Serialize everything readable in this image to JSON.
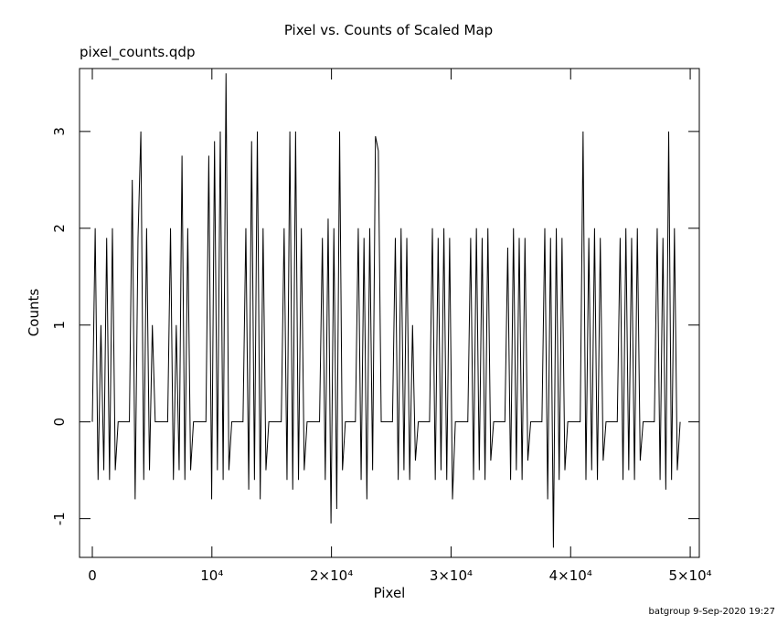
{
  "chart_data": {
    "type": "line",
    "title": "Pixel vs. Counts of Scaled Map",
    "subtitle": "pixel_counts.qdp",
    "x_label": "Pixel",
    "y_label": "Counts",
    "footer": "batgroup  9-Sep-2020 19:27",
    "xlim": [
      -1070,
      50760
    ],
    "ylim": [
      -1.4,
      3.65
    ],
    "xticks": [
      0,
      {
        "value": 10000,
        "label": "10⁴"
      },
      {
        "value": 20000,
        "label": "2×10⁴"
      },
      {
        "value": 30000,
        "label": "3×10⁴"
      },
      {
        "value": 40000,
        "label": "4×10⁴"
      },
      {
        "value": 50000,
        "label": "5×10⁴"
      }
    ],
    "yticks": [
      -1,
      0,
      1,
      2,
      3
    ],
    "series": [
      {
        "color": "#000000",
        "x": [
          0,
          240,
          480,
          720,
          960,
          1200,
          1440,
          1680,
          1920,
          2160,
          3100,
          3340,
          3580,
          3820,
          4060,
          4300,
          4540,
          4780,
          5020,
          5260,
          6300,
          6540,
          6780,
          7020,
          7260,
          7500,
          7740,
          7980,
          8220,
          8460,
          9500,
          9740,
          9980,
          10220,
          10460,
          10700,
          10940,
          11180,
          11420,
          11660,
          12600,
          12840,
          13080,
          13320,
          13560,
          13800,
          14040,
          14280,
          14520,
          14760,
          15800,
          16040,
          16280,
          16520,
          16760,
          17000,
          17240,
          17480,
          17720,
          17960,
          19000,
          19240,
          19480,
          19720,
          19960,
          20200,
          20440,
          20680,
          20920,
          21160,
          22000,
          22240,
          22480,
          22720,
          22960,
          23200,
          23440,
          23680,
          23920,
          24160,
          25100,
          25340,
          25580,
          25820,
          26060,
          26300,
          26540,
          26780,
          27020,
          27260,
          28200,
          28440,
          28680,
          28920,
          29160,
          29400,
          29640,
          29880,
          30120,
          30360,
          31400,
          31640,
          31880,
          32120,
          32360,
          32600,
          32840,
          33080,
          33320,
          33560,
          34500,
          34740,
          34980,
          35220,
          35460,
          35700,
          35940,
          36180,
          36420,
          36660,
          37600,
          37840,
          38080,
          38320,
          38560,
          38800,
          39040,
          39280,
          39520,
          39760,
          40800,
          41040,
          41280,
          41520,
          41760,
          42000,
          42240,
          42480,
          42720,
          42960,
          43900,
          44140,
          44380,
          44620,
          44860,
          45100,
          45340,
          45580,
          45820,
          46060,
          47000,
          47240,
          47480,
          47720,
          47960,
          48200,
          48440,
          48680,
          48920,
          49160
        ],
        "values": [
          0,
          2,
          -0.6,
          1,
          -0.5,
          1.9,
          -0.6,
          2,
          -0.5,
          0,
          0,
          2.5,
          -0.8,
          1.9,
          3,
          -0.6,
          2,
          -0.5,
          1,
          0,
          0,
          2,
          -0.6,
          1,
          -0.5,
          2.75,
          -0.6,
          2,
          -0.5,
          0,
          0,
          2.75,
          -0.8,
          2.9,
          -0.5,
          3,
          -0.6,
          3.6,
          -0.5,
          0,
          0,
          2,
          -0.7,
          2.9,
          -0.6,
          3,
          -0.8,
          2,
          -0.5,
          0,
          0,
          2,
          -0.6,
          3,
          -0.7,
          3,
          -0.6,
          2,
          -0.5,
          0,
          0,
          1.9,
          -0.6,
          2.1,
          -1.05,
          2,
          -0.9,
          3,
          -0.5,
          0,
          0,
          2,
          -0.6,
          1.9,
          -0.8,
          2,
          -0.5,
          2.95,
          2.8,
          0,
          0,
          1.9,
          -0.6,
          2,
          -0.5,
          1.9,
          -0.6,
          1,
          -0.4,
          0,
          0,
          2,
          -0.6,
          1.9,
          -0.5,
          2,
          -0.6,
          1.9,
          -0.8,
          0,
          0,
          1.9,
          -0.6,
          2,
          -0.5,
          1.9,
          -0.6,
          2,
          -0.4,
          0,
          0,
          1.8,
          -0.6,
          2,
          -0.5,
          1.9,
          -0.6,
          1.9,
          -0.4,
          0,
          0,
          2,
          -0.8,
          1.9,
          -1.3,
          2,
          -0.6,
          1.9,
          -0.5,
          0,
          0,
          3,
          -0.6,
          1.9,
          -0.5,
          2,
          -0.6,
          1.9,
          -0.4,
          0,
          0,
          1.9,
          -0.6,
          2,
          -0.5,
          1.9,
          -0.6,
          2,
          -0.4,
          0,
          0,
          2,
          -0.6,
          1.9,
          -0.7,
          3,
          -0.6,
          2,
          -0.5,
          0
        ]
      }
    ]
  }
}
